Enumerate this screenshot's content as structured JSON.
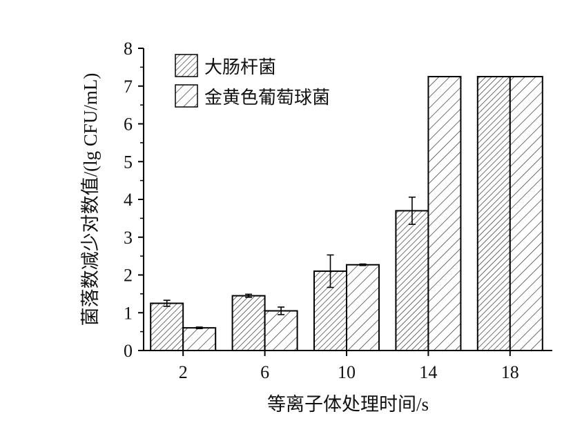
{
  "chart_data": {
    "type": "bar",
    "xlabel": "等离子体处理时间/s",
    "ylabel": "菌落数减少对数值/(lg CFU/mL)",
    "ylim": [
      0,
      8
    ],
    "yticks": [
      0,
      1,
      2,
      3,
      4,
      5,
      6,
      7,
      8
    ],
    "categories": [
      "2",
      "6",
      "10",
      "14",
      "18"
    ],
    "series": [
      {
        "name": "大肠杆菌",
        "values": [
          1.25,
          1.45,
          2.1,
          3.7,
          7.25
        ],
        "errors": [
          0.08,
          0.04,
          0.43,
          0.36,
          0
        ],
        "pattern": "dense-hatch"
      },
      {
        "name": "金黄色葡萄球菌",
        "values": [
          0.6,
          1.05,
          2.27,
          7.25,
          7.25
        ],
        "errors": [
          0.02,
          0.1,
          0.02,
          0,
          0
        ],
        "pattern": "sparse-hatch"
      }
    ],
    "legend_position": "top-left",
    "grid": false
  }
}
